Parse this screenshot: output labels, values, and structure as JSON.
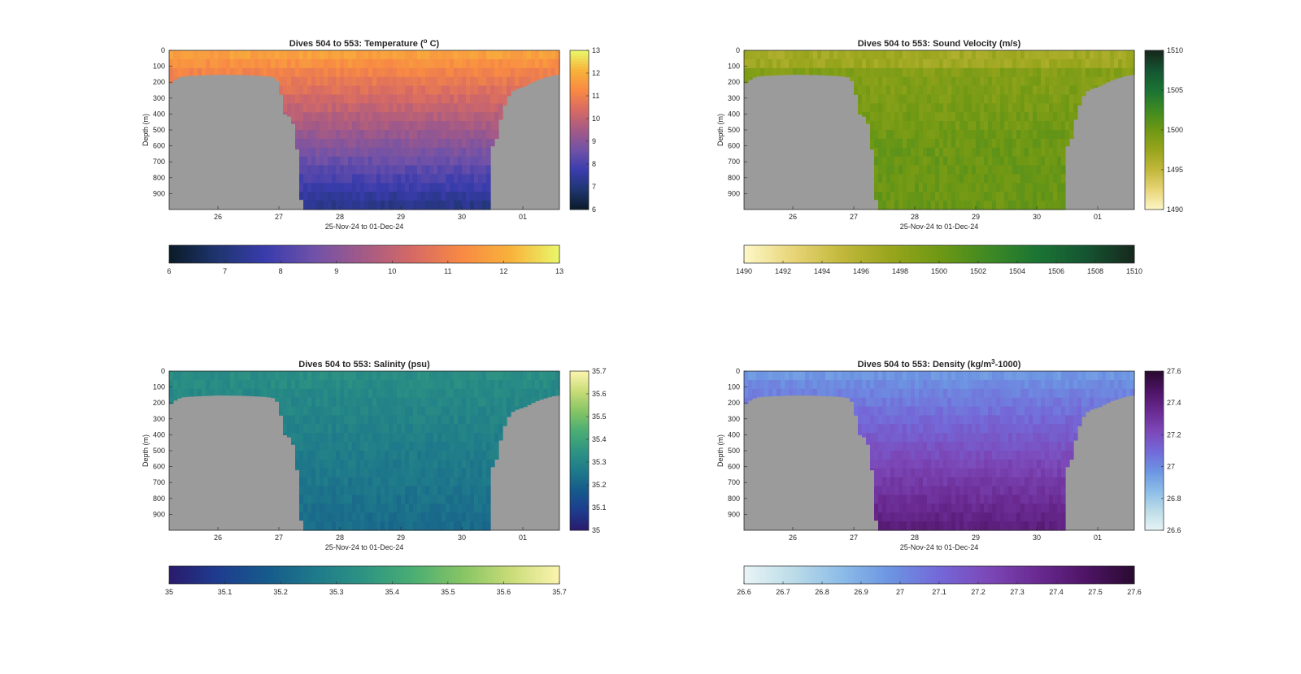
{
  "colors": {
    "land": "#9b9b9b",
    "axis": "#262626",
    "background": "#ffffff"
  },
  "chart_data": [
    {
      "type": "heatmap",
      "id": "temperature",
      "title": "Dives 504 to 553: Temperature (",
      "title_sup": "o",
      "title_suffix": " C)",
      "ylabel": "Depth (m)",
      "xlabel": "25-Nov-24 to 01-Dec-24",
      "y_ticks": [
        "0",
        "100",
        "200",
        "300",
        "400",
        "500",
        "600",
        "700",
        "800",
        "900"
      ],
      "x_ticks": [
        "26",
        "27",
        "28",
        "29",
        "30",
        "01"
      ],
      "colorbar_side_ticks": [
        "6",
        "7",
        "8",
        "9",
        "10",
        "11",
        "12",
        "13"
      ],
      "colorbar_bottom_ticks": [
        "6",
        "7",
        "8",
        "9",
        "10",
        "11",
        "12",
        "13"
      ],
      "value_range": [
        6,
        13
      ],
      "surface_value": 11.9,
      "deep_value": 7.1,
      "colormap": [
        "#0a1a26",
        "#1f3570",
        "#3a3cae",
        "#7152a8",
        "#a45a86",
        "#d66a64",
        "#f88944",
        "#f8b23a",
        "#eaf86a"
      ]
    },
    {
      "type": "heatmap",
      "id": "sound-velocity",
      "title": "Dives 504 to 553: Sound Velocity (m/s)",
      "ylabel": "Depth (m)",
      "xlabel": "25-Nov-24 to 01-Dec-24",
      "y_ticks": [
        "0",
        "100",
        "200",
        "300",
        "400",
        "500",
        "600",
        "700",
        "800",
        "900"
      ],
      "x_ticks": [
        "26",
        "27",
        "28",
        "29",
        "30",
        "01"
      ],
      "colorbar_side_ticks": [
        "1490",
        "1495",
        "1500",
        "1505",
        "1510"
      ],
      "colorbar_bottom_ticks": [
        "1490",
        "1492",
        "1494",
        "1496",
        "1498",
        "1500",
        "1502",
        "1504",
        "1506",
        "1508",
        "1510"
      ],
      "value_range": [
        1490,
        1510
      ],
      "surface_value": 1498.3,
      "deep_value": 1500.2,
      "colormap": [
        "#fdf7c8",
        "#e8d578",
        "#c2b83c",
        "#98a51c",
        "#6f9814",
        "#3f8a22",
        "#1b7434",
        "#155532",
        "#16271c"
      ]
    },
    {
      "type": "heatmap",
      "id": "salinity",
      "title": "Dives 504 to 553: Salinity (psu)",
      "ylabel": "Depth (m)",
      "xlabel": "25-Nov-24 to 01-Dec-24",
      "y_ticks": [
        "0",
        "100",
        "200",
        "300",
        "400",
        "500",
        "600",
        "700",
        "800",
        "900"
      ],
      "x_ticks": [
        "26",
        "27",
        "28",
        "29",
        "30",
        "01"
      ],
      "colorbar_side_ticks": [
        "35",
        "35.1",
        "35.2",
        "35.3",
        "35.4",
        "35.5",
        "35.6",
        "35.7"
      ],
      "colorbar_bottom_ticks": [
        "35",
        "35.1",
        "35.2",
        "35.3",
        "35.4",
        "35.5",
        "35.6",
        "35.7"
      ],
      "value_range": [
        35,
        35.7
      ],
      "surface_value": 35.33,
      "deep_value": 35.22,
      "colormap": [
        "#2a1a6c",
        "#1e3c8e",
        "#165a8c",
        "#1e7a8a",
        "#2e9482",
        "#4aae74",
        "#86c464",
        "#c8dc78",
        "#fcf4ae"
      ]
    },
    {
      "type": "heatmap",
      "id": "density",
      "title": "Dives 504 to 553: Density (kg/m",
      "title_sup": "3",
      "title_suffix": "-1000)",
      "ylabel": "Depth (m)",
      "xlabel": "25-Nov-24 to 01-Dec-24",
      "y_ticks": [
        "0",
        "100",
        "200",
        "300",
        "400",
        "500",
        "600",
        "700",
        "800",
        "900"
      ],
      "x_ticks": [
        "26",
        "27",
        "28",
        "29",
        "30",
        "01"
      ],
      "colorbar_side_ticks": [
        "26.6",
        "26.8",
        "27",
        "27.2",
        "27.4",
        "27.6"
      ],
      "colorbar_bottom_ticks": [
        "26.6",
        "26.7",
        "26.8",
        "26.9",
        "27",
        "27.1",
        "27.2",
        "27.3",
        "27.4",
        "27.5",
        "27.6"
      ],
      "value_range": [
        26.6,
        27.6
      ],
      "surface_value": 26.95,
      "deep_value": 27.42,
      "colormap": [
        "#e8f4f6",
        "#bcdce8",
        "#8cbce8",
        "#6c94e2",
        "#7468d8",
        "#7c48b8",
        "#6a2a92",
        "#4e1466",
        "#2a0a30"
      ]
    }
  ]
}
